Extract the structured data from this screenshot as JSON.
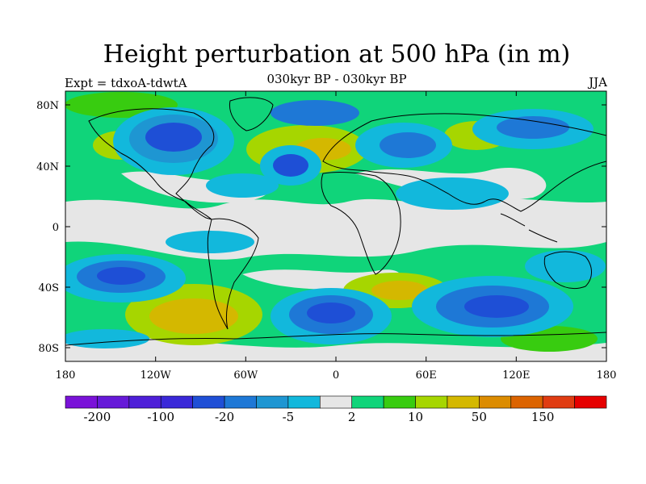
{
  "title": "Height perturbation at 500 hPa (in m)",
  "subtitle": "030kyr BP - 030kyr BP",
  "experiment": "Expt = tdxoA-tdwtA",
  "season": "JJA",
  "lat_ticks": [
    "80N",
    "40N",
    "0",
    "40S",
    "80S"
  ],
  "lon_ticks": [
    "180",
    "120W",
    "60W",
    "0",
    "60E",
    "120E",
    "180"
  ],
  "colorbar": {
    "colors": [
      "#7a12d8",
      "#6619d8",
      "#4e1fd8",
      "#3a28d8",
      "#1f4fd6",
      "#1e78d6",
      "#1e96d2",
      "#12b8dc",
      "#e6e6e6",
      "#10d47a",
      "#38cc10",
      "#a6d600",
      "#d4b800",
      "#dc8c00",
      "#dc6400",
      "#e03c12",
      "#e60000"
    ],
    "labels": [
      "-200",
      "-100",
      "-20",
      "-5",
      "2",
      "10",
      "50",
      "150"
    ]
  },
  "palette": {
    "background": "#e6e6e6",
    "deep_blue": "#1e4fd6",
    "blue": "#1e78d6",
    "sky": "#12b8dc",
    "teal": "#10d47a",
    "green": "#38cc10",
    "olive": "#c8c000",
    "coast": "#000000"
  }
}
